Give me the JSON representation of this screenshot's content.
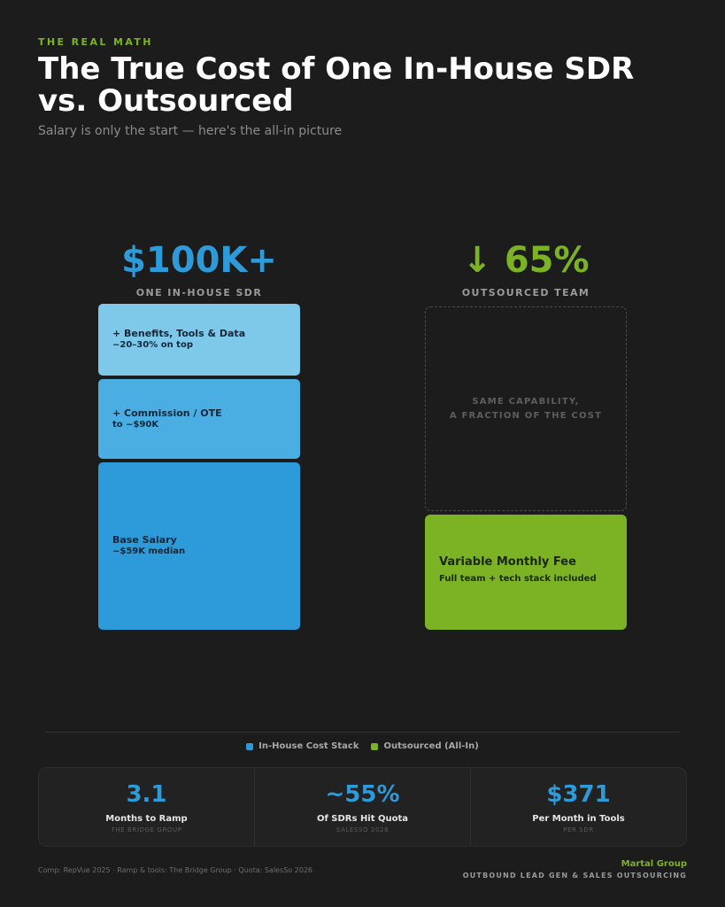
{
  "header": {
    "eyebrow": "THE REAL MATH",
    "title": "The True Cost of One In-House SDR vs. Outsourced",
    "subtitle": "Salary is only the start — here's the all-in picture"
  },
  "in_house": {
    "headline": "$100K+",
    "label": "ONE IN-HOUSE SDR",
    "color": "#2d9ad9"
  },
  "outsourced": {
    "headline": "↓ 65%",
    "label": "OUTSOURCED TEAM",
    "color": "#7cb324",
    "ghost_text": "SAME CAPABILITY,\nA FRACTION OF THE COST",
    "fee_title": "Variable Monthly Fee",
    "fee_subtitle": "Full team + tech stack included"
  },
  "chart_data": {
    "type": "bar",
    "title": "The True Cost of One In-House SDR vs. Outsourced",
    "series": [
      {
        "name": "In-House Cost Stack",
        "color": "#2d9ad9",
        "total": "$100K+",
        "segments": [
          {
            "label": "+ Benefits, Tools & Data",
            "detail": "~20–30% on top",
            "color": "#7ec8ea"
          },
          {
            "label": "+ Commission / OTE",
            "detail": "to ~$90K",
            "color": "#4aaee2"
          },
          {
            "label": "Base Salary",
            "detail": "~$59K median",
            "color": "#2d9ad9"
          }
        ]
      },
      {
        "name": "Outsourced (All-In)",
        "color": "#7cb324",
        "reduction": "↓ 65%",
        "segments": [
          {
            "label": "Variable Monthly Fee",
            "detail": "Full team + tech stack included",
            "color": "#7cb324"
          }
        ]
      }
    ],
    "legend": [
      "In-House Cost Stack",
      "Outsourced (All-In)"
    ],
    "legend_position": "bottom-center"
  },
  "stats": [
    {
      "value": "3.1",
      "label": "Months to Ramp",
      "source": "THE BRIDGE GROUP"
    },
    {
      "value": "~55%",
      "label": "Of SDRs Hit Quota",
      "source": "SALESSO 2026"
    },
    {
      "value": "$371",
      "label": "Per Month in Tools",
      "source": "PER SDR"
    }
  ],
  "footer": {
    "sources": "Comp: RepVue 2025 · Ramp & tools: The Bridge Group · Quota: SalesSo 2026",
    "brand": "Martal Group",
    "tagline": "OUTBOUND LEAD GEN & SALES OUTSOURCING"
  }
}
